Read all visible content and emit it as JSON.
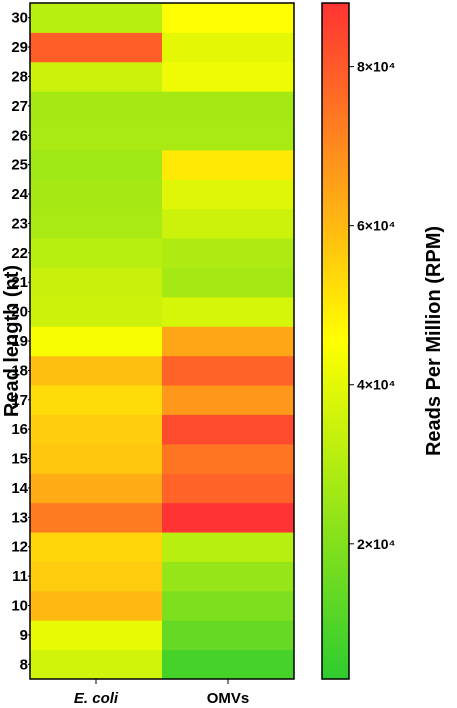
{
  "chart_data": {
    "type": "heatmap",
    "title": "",
    "xlabel": "",
    "ylabel": "Read length (nt)",
    "x_categories": [
      "E. coli",
      "OMVs"
    ],
    "y_categories": [
      8,
      9,
      10,
      11,
      12,
      13,
      14,
      15,
      16,
      17,
      18,
      19,
      20,
      21,
      22,
      23,
      24,
      25,
      26,
      27,
      28,
      29,
      30
    ],
    "values": {
      "E. coli": [
        36000,
        41000,
        60000,
        56000,
        54000,
        73000,
        63000,
        57000,
        56000,
        53000,
        59000,
        44000,
        35000,
        34000,
        31000,
        28000,
        27000,
        26000,
        28000,
        27000,
        35000,
        79000,
        31000
      ],
      "OMVs": [
        8000,
        14000,
        19000,
        24000,
        31000,
        89000,
        78000,
        74000,
        83000,
        67000,
        78000,
        64000,
        37000,
        27000,
        29000,
        35000,
        39000,
        50000,
        28000,
        27000,
        42000,
        40000,
        45000
      ]
    },
    "colorbar": {
      "label": "Reads Per Million (RPM)",
      "range": [
        3000,
        88000
      ],
      "ticks": [
        {
          "value": 20000,
          "label": "2×10⁴"
        },
        {
          "value": 40000,
          "label": "4×10⁴"
        },
        {
          "value": 60000,
          "label": "6×10⁴"
        },
        {
          "value": 80000,
          "label": "8×10⁴"
        }
      ],
      "colors": [
        "#2fcc2f",
        "#ffff00",
        "#ff3333"
      ]
    },
    "grid": false,
    "legend_position": "right"
  }
}
